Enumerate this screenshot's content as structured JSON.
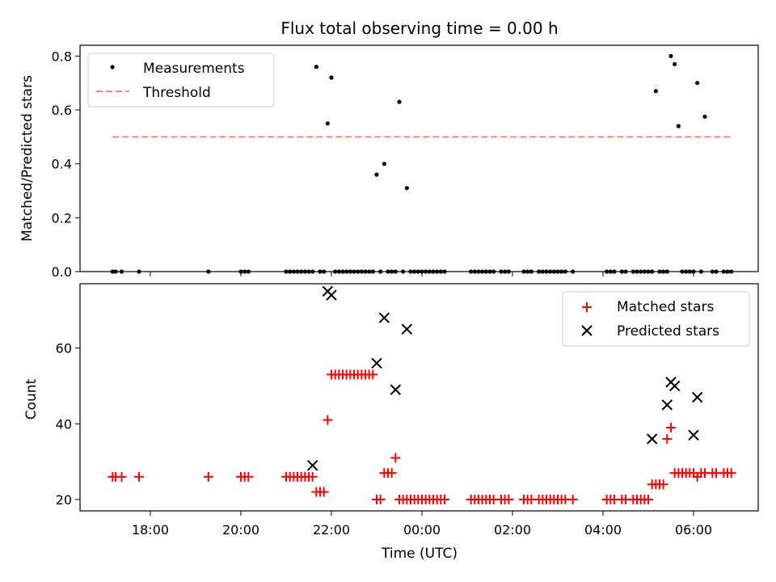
{
  "chart_data": [
    {
      "type": "scatter",
      "title": "Flux total observing time = 0.00 h",
      "xlabel": "",
      "ylabel": "Matched/Predicted stars",
      "ylim": [
        0,
        0.84
      ],
      "yticks": [
        0.0,
        0.2,
        0.4,
        0.6,
        0.8
      ],
      "ytick_labels": [
        "0.0",
        "0.2",
        "0.4",
        "0.6",
        "0.8"
      ],
      "legend_position": "top-left",
      "series": [
        {
          "name": "Measurements",
          "color": "#000000",
          "marker": "dot",
          "x": [
            "17:10",
            "17:14",
            "17:22",
            "17:45",
            "19:17",
            "20:00",
            "20:05",
            "20:10",
            "21:00",
            "21:05",
            "21:10",
            "21:15",
            "21:20",
            "21:25",
            "21:30",
            "21:35",
            "21:40",
            "21:45",
            "21:50",
            "21:55",
            "22:00",
            "22:05",
            "22:10",
            "22:15",
            "22:20",
            "22:25",
            "22:30",
            "22:35",
            "22:40",
            "22:45",
            "22:50",
            "22:55",
            "23:00",
            "23:05",
            "23:10",
            "23:15",
            "23:20",
            "23:25",
            "23:30",
            "23:35",
            "23:40",
            "23:45",
            "23:50",
            "23:55",
            "00:00",
            "00:05",
            "00:10",
            "00:15",
            "00:20",
            "00:25",
            "00:30",
            "01:05",
            "01:10",
            "01:15",
            "01:20",
            "01:25",
            "01:30",
            "01:35",
            "01:45",
            "01:50",
            "01:55",
            "02:15",
            "02:20",
            "02:25",
            "02:35",
            "02:40",
            "02:45",
            "02:50",
            "02:55",
            "03:00",
            "03:05",
            "03:10",
            "03:20",
            "04:05",
            "04:10",
            "04:15",
            "04:25",
            "04:30",
            "04:40",
            "04:45",
            "04:50",
            "04:55",
            "05:00",
            "05:05",
            "05:10",
            "05:15",
            "05:20",
            "05:25",
            "05:30",
            "05:35",
            "05:40",
            "05:45",
            "05:50",
            "05:55",
            "06:00",
            "06:05",
            "06:10",
            "06:15",
            "06:25",
            "06:30",
            "06:40",
            "06:45",
            "06:50"
          ],
          "y": [
            0,
            0,
            0,
            0,
            0,
            0,
            0,
            0,
            0,
            0,
            0,
            0,
            0,
            0,
            0,
            0,
            0.76,
            0,
            0,
            0.55,
            0.72,
            0,
            0,
            0,
            0,
            0,
            0,
            0,
            0,
            0,
            0,
            0,
            0.36,
            0,
            0.4,
            0,
            0,
            0,
            0.63,
            0,
            0.31,
            0,
            0,
            0,
            0,
            0,
            0,
            0,
            0,
            0,
            0,
            0,
            0,
            0,
            0,
            0,
            0,
            0,
            0,
            0,
            0,
            0,
            0,
            0,
            0,
            0,
            0,
            0,
            0,
            0,
            0,
            0,
            0,
            0,
            0,
            0,
            0,
            0,
            0,
            0,
            0,
            0,
            0,
            0,
            0.67,
            0,
            0,
            0,
            0.8,
            0.77,
            0.54,
            0,
            0,
            0,
            0,
            0.7,
            0,
            0.575,
            0,
            0,
            0,
            0,
            0
          ]
        },
        {
          "name": "Threshold",
          "color": "#ff7f7f",
          "style": "dashed",
          "x": [
            "17:10",
            "06:50"
          ],
          "y": [
            0.5,
            0.5
          ]
        }
      ]
    },
    {
      "type": "scatter",
      "title": "",
      "xlabel": "Time (UTC)",
      "ylabel": "Count",
      "ylim": [
        17,
        77
      ],
      "yticks": [
        20,
        40,
        60
      ],
      "ytick_labels": [
        "20",
        "40",
        "60"
      ],
      "xticks": [
        "18:00",
        "20:00",
        "22:00",
        "00:00",
        "02:00",
        "04:00",
        "06:00"
      ],
      "legend_position": "top-right",
      "series": [
        {
          "name": "Matched stars",
          "color": "#ff0000",
          "marker": "plus",
          "x": [
            "17:10",
            "17:14",
            "17:22",
            "17:45",
            "19:17",
            "20:00",
            "20:05",
            "20:10",
            "21:00",
            "21:05",
            "21:10",
            "21:15",
            "21:20",
            "21:25",
            "21:30",
            "21:35",
            "21:40",
            "21:45",
            "21:50",
            "21:55",
            "22:00",
            "22:05",
            "22:10",
            "22:15",
            "22:20",
            "22:25",
            "22:30",
            "22:35",
            "22:40",
            "22:45",
            "22:50",
            "22:55",
            "23:00",
            "23:05",
            "23:10",
            "23:15",
            "23:20",
            "23:25",
            "23:30",
            "23:35",
            "23:40",
            "23:45",
            "23:50",
            "23:55",
            "00:00",
            "00:05",
            "00:10",
            "00:15",
            "00:20",
            "00:25",
            "00:30",
            "01:05",
            "01:10",
            "01:15",
            "01:20",
            "01:25",
            "01:30",
            "01:35",
            "01:45",
            "01:50",
            "01:55",
            "02:15",
            "02:20",
            "02:25",
            "02:35",
            "02:40",
            "02:45",
            "02:50",
            "02:55",
            "03:00",
            "03:05",
            "03:10",
            "03:20",
            "04:05",
            "04:10",
            "04:15",
            "04:25",
            "04:30",
            "04:40",
            "04:45",
            "04:50",
            "04:55",
            "05:00",
            "05:05",
            "05:10",
            "05:15",
            "05:20",
            "05:25",
            "05:30",
            "05:35",
            "05:40",
            "05:45",
            "05:50",
            "05:55",
            "06:00",
            "06:05",
            "06:10",
            "06:15",
            "06:25",
            "06:30",
            "06:40",
            "06:45",
            "06:50"
          ],
          "y": [
            26,
            26,
            26,
            26,
            26,
            26,
            26,
            26,
            26,
            26,
            26,
            26,
            26,
            26,
            26,
            26,
            22,
            22,
            22,
            41,
            53,
            53,
            53,
            53,
            53,
            53,
            53,
            53,
            53,
            53,
            53,
            53,
            20,
            20,
            27,
            27,
            27,
            31,
            20,
            20,
            20,
            20,
            20,
            20,
            20,
            20,
            20,
            20,
            20,
            20,
            20,
            20,
            20,
            20,
            20,
            20,
            20,
            20,
            20,
            20,
            20,
            20,
            20,
            20,
            20,
            20,
            20,
            20,
            20,
            20,
            20,
            20,
            20,
            20,
            20,
            20,
            20,
            20,
            20,
            20,
            20,
            20,
            20,
            24,
            24,
            24,
            24,
            36,
            39,
            27,
            27,
            27,
            27,
            27,
            27,
            26,
            27,
            27,
            27,
            27,
            27,
            27,
            27
          ]
        },
        {
          "name": "Predicted stars",
          "color": "#000000",
          "marker": "x",
          "x": [
            "21:35",
            "21:55",
            "22:00",
            "23:00",
            "23:10",
            "23:25",
            "23:40",
            "05:05",
            "05:25",
            "05:30",
            "05:35",
            "06:00",
            "06:05"
          ],
          "y": [
            29,
            75,
            74,
            56,
            68,
            49,
            65,
            36,
            45,
            51,
            50,
            37,
            47
          ]
        }
      ]
    }
  ]
}
